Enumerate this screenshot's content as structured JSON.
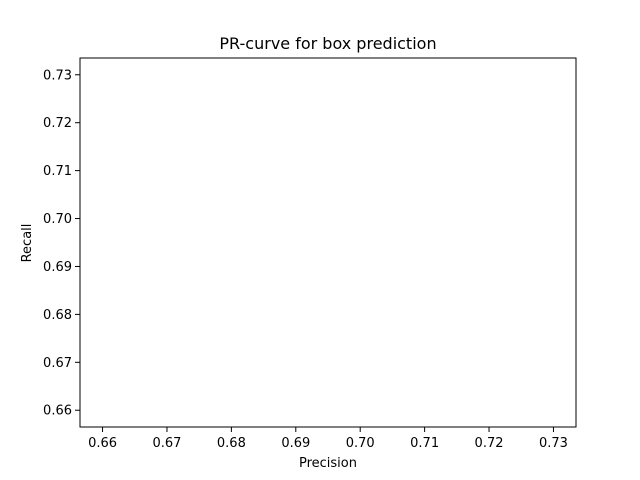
{
  "chart_data": {
    "type": "line",
    "title": "PR-curve for box prediction",
    "xlabel": "Precision",
    "ylabel": "Recall",
    "xlim": [
      0.6565,
      0.7335
    ],
    "ylim": [
      0.6565,
      0.7335
    ],
    "xticks": [
      0.66,
      0.67,
      0.68,
      0.69,
      0.7,
      0.71,
      0.72,
      0.73
    ],
    "yticks": [
      0.66,
      0.67,
      0.68,
      0.69,
      0.7,
      0.71,
      0.72,
      0.73
    ],
    "xtick_labels": [
      "0.66",
      "0.67",
      "0.68",
      "0.69",
      "0.70",
      "0.71",
      "0.72",
      "0.73"
    ],
    "ytick_labels": [
      "0.66",
      "0.67",
      "0.68",
      "0.69",
      "0.70",
      "0.71",
      "0.72",
      "0.73"
    ],
    "grid": false,
    "series": []
  }
}
